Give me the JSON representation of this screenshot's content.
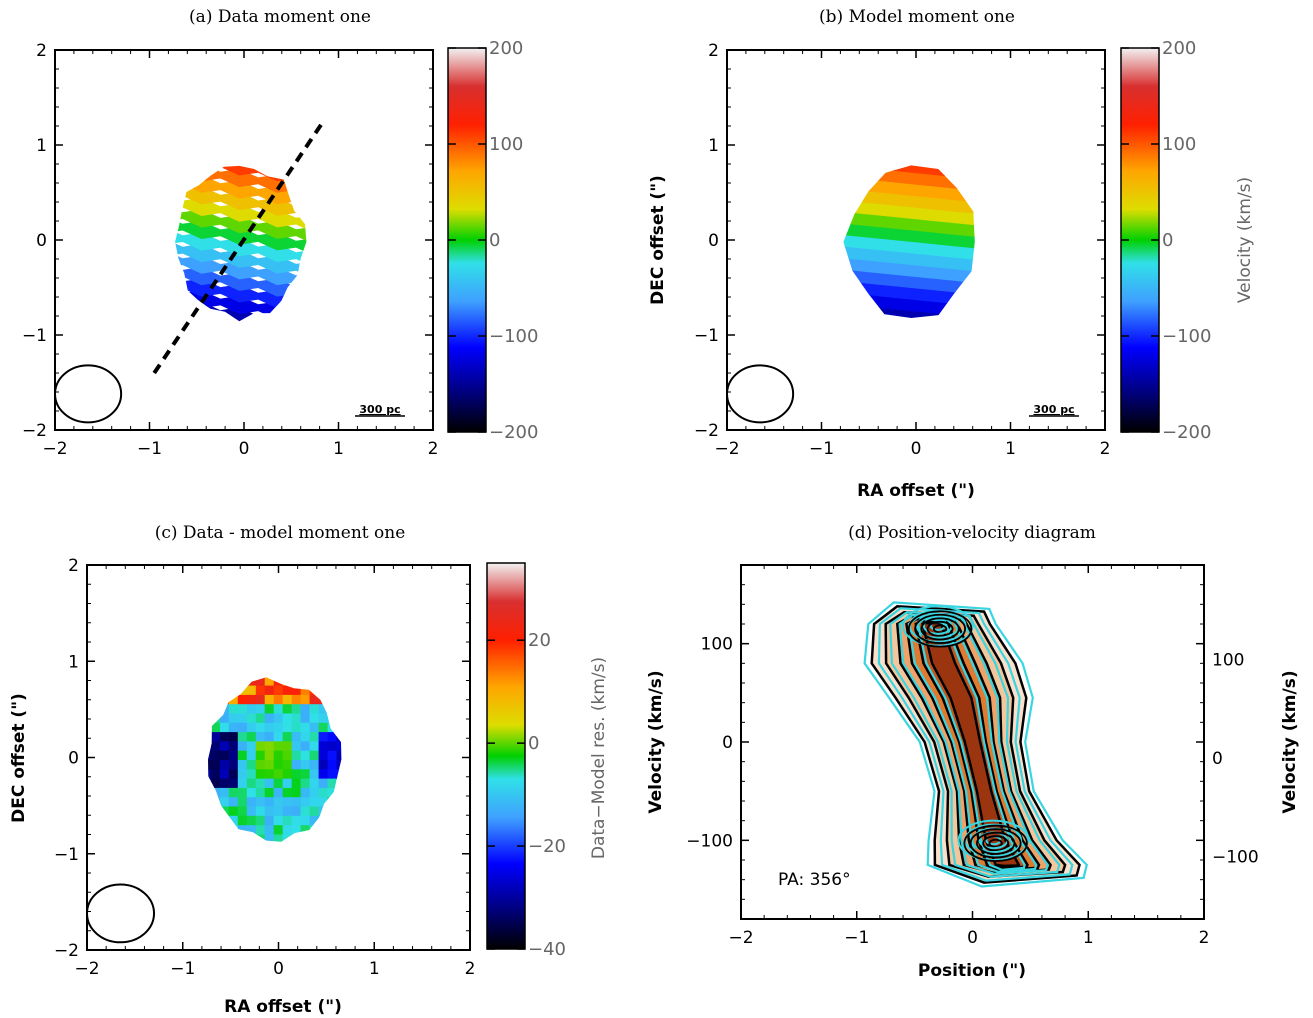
{
  "chart_data": [
    {
      "id": "a",
      "type": "heatmap",
      "title": "(a) Data moment one",
      "xlabel": "",
      "ylabel": "",
      "xlim": [
        -2,
        2
      ],
      "ylim": [
        -2,
        2
      ],
      "xticks": [
        "−2",
        "−1",
        "0",
        "1",
        "2"
      ],
      "yticks": [
        "−2",
        "−1",
        "0",
        "1",
        "2"
      ],
      "colorbar": {
        "range": [
          -200,
          200
        ],
        "ticks": [
          "−200",
          "−100",
          "0",
          "100",
          "200"
        ],
        "label": ""
      },
      "scalebar": "300 pc",
      "pa_line": {
        "from": [
          -0.95,
          -1.4
        ],
        "to": [
          0.82,
          1.22
        ]
      },
      "beam": {
        "center": [
          -1.65,
          -1.62
        ],
        "rx": 0.35,
        "ry": 0.3
      },
      "source": {
        "center": [
          -0.05,
          -0.02
        ],
        "rx": 0.7,
        "ry": 0.8
      },
      "velocity_gradient": {
        "vmin": -150,
        "vmax": 120,
        "tilt": -0.15
      }
    },
    {
      "id": "b",
      "type": "heatmap",
      "title": "(b) Model moment one",
      "xlabel": "RA offset (\")",
      "ylabel": "DEC offset (\")",
      "xlim": [
        -2,
        2
      ],
      "ylim": [
        -2,
        2
      ],
      "xticks": [
        "−2",
        "−1",
        "0",
        "1",
        "2"
      ],
      "yticks": [
        "−2",
        "−1",
        "0",
        "1",
        "2"
      ],
      "colorbar": {
        "range": [
          -200,
          200
        ],
        "ticks": [
          "−200",
          "−100",
          "0",
          "100",
          "200"
        ],
        "label": "Velocity (km/s)"
      },
      "scalebar": "300 pc",
      "beam": {
        "center": [
          -1.65,
          -1.62
        ],
        "rx": 0.35,
        "ry": 0.3
      },
      "source": {
        "center": [
          -0.05,
          -0.02
        ],
        "rx": 0.7,
        "ry": 0.8
      },
      "velocity_gradient": {
        "vmin": -150,
        "vmax": 120,
        "tilt": -0.1
      }
    },
    {
      "id": "c",
      "type": "heatmap",
      "title": "(c) Data - model moment one",
      "xlabel": "RA offset (\")",
      "ylabel": "DEC offset (\")",
      "xlim": [
        -2,
        2
      ],
      "ylim": [
        -2,
        2
      ],
      "xticks": [
        "−2",
        "−1",
        "0",
        "1",
        "2"
      ],
      "yticks": [
        "−2",
        "−1",
        "0",
        "1",
        "2"
      ],
      "colorbar": {
        "range": [
          -40,
          35
        ],
        "ticks": [
          "−40",
          "−20",
          "0",
          "20"
        ],
        "label": "Data−Model res. (km/s)"
      },
      "beam": {
        "center": [
          -1.65,
          -1.62
        ],
        "rx": 0.35,
        "ry": 0.3
      },
      "source": {
        "center": [
          -0.05,
          -0.02
        ],
        "rx": 0.7,
        "ry": 0.82
      }
    },
    {
      "id": "d",
      "type": "contour",
      "title": "(d) Position-velocity diagram",
      "xlabel": "Position (\")",
      "ylabel": "Velocity (km/s)",
      "ylabel_right": "Velocity (km/s)",
      "xlim": [
        -2,
        2
      ],
      "ylim": [
        -180,
        180
      ],
      "xticks": [
        "−2",
        "−1",
        "0",
        "1",
        "2"
      ],
      "yticks": [
        "−100",
        "0",
        "100"
      ],
      "yticks_right": [
        "−100",
        "0",
        "100"
      ],
      "annotation": "PA: 356°",
      "ridge": [
        {
          "pos": -0.35,
          "vel": 120
        },
        {
          "pos": -0.25,
          "vel": 80
        },
        {
          "pos": -0.1,
          "vel": 45
        },
        {
          "pos": 0.0,
          "vel": 0
        },
        {
          "pos": 0.1,
          "vel": -50
        },
        {
          "pos": 0.2,
          "vel": -100
        },
        {
          "pos": 0.3,
          "vel": -125
        }
      ],
      "data_contours": "black",
      "model_contours": "cyan"
    }
  ]
}
